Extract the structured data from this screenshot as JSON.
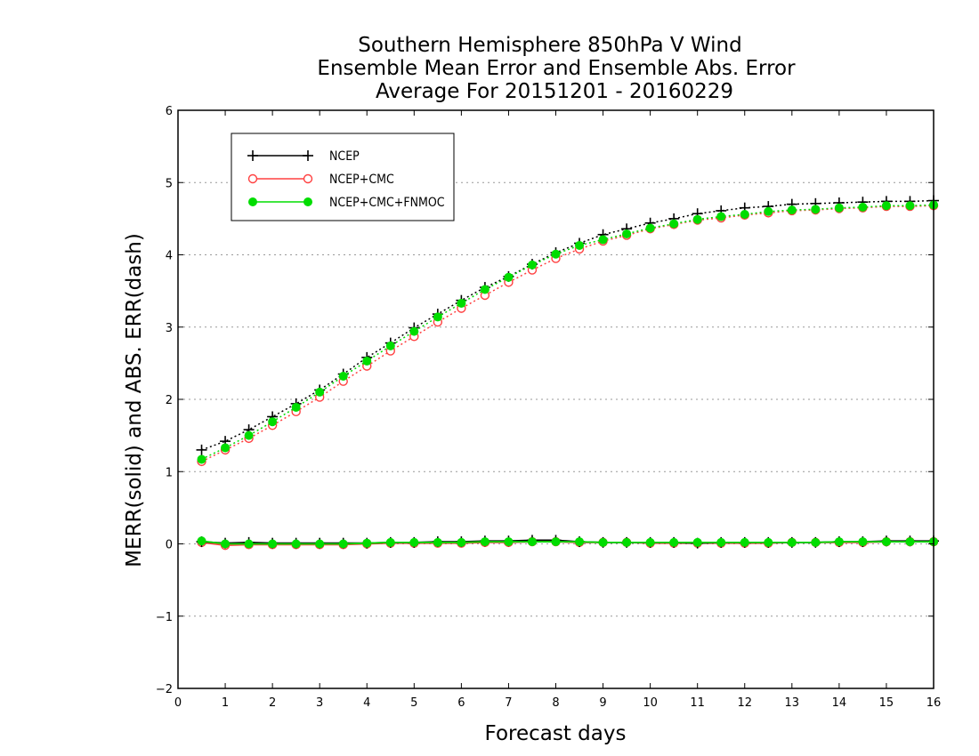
{
  "chart_data": {
    "type": "line",
    "title": [
      "Southern Hemisphere 850hPa V Wind",
      "Ensemble Mean Error and Ensemble Abs. Error",
      "Average For 20151201 - 20160229"
    ],
    "xlabel": "Forecast days",
    "ylabel": "MERR(solid) and ABS. ERR(dash)",
    "xlim": [
      0,
      16
    ],
    "ylim": [
      -2,
      6
    ],
    "xticks": [
      "0",
      "1",
      "2",
      "3",
      "4",
      "5",
      "6",
      "7",
      "8",
      "9",
      "10",
      "11",
      "12",
      "13",
      "14",
      "15",
      "16"
    ],
    "yticks": [
      "−2",
      "−1",
      "0",
      "1",
      "2",
      "3",
      "4",
      "5",
      "6"
    ],
    "grid": "horizontal-dotted",
    "legend_position": "top-left",
    "x": [
      0.5,
      1,
      1.5,
      2,
      2.5,
      3,
      3.5,
      4,
      4.5,
      5,
      5.5,
      6,
      6.5,
      7,
      7.5,
      8,
      8.5,
      9,
      9.5,
      10,
      10.5,
      11,
      11.5,
      12,
      12.5,
      13,
      13.5,
      14,
      14.5,
      15,
      15.5,
      16
    ],
    "series": [
      {
        "name": "NCEP",
        "color": "#000000",
        "marker": "plus",
        "mean_error": [
          0.03,
          0.01,
          0.02,
          0.01,
          0.01,
          0.01,
          0.01,
          0.01,
          0.02,
          0.02,
          0.03,
          0.03,
          0.04,
          0.04,
          0.05,
          0.05,
          0.03,
          0.02,
          0.02,
          0.02,
          0.02,
          0.01,
          0.02,
          0.02,
          0.02,
          0.02,
          0.02,
          0.03,
          0.03,
          0.04,
          0.04,
          0.04
        ],
        "abs_error": [
          1.3,
          1.42,
          1.58,
          1.76,
          1.94,
          2.13,
          2.35,
          2.58,
          2.78,
          2.99,
          3.18,
          3.37,
          3.55,
          3.7,
          3.87,
          4.03,
          4.16,
          4.28,
          4.36,
          4.44,
          4.5,
          4.57,
          4.61,
          4.65,
          4.67,
          4.7,
          4.71,
          4.72,
          4.73,
          4.74,
          4.74,
          4.75
        ]
      },
      {
        "name": "NCEP+CMC",
        "color": "#ff4040",
        "marker": "open-circle",
        "mean_error": [
          0.02,
          -0.02,
          -0.01,
          -0.01,
          -0.01,
          -0.01,
          -0.01,
          0.0,
          0.01,
          0.01,
          0.01,
          0.01,
          0.02,
          0.02,
          0.03,
          0.03,
          0.02,
          0.02,
          0.02,
          0.01,
          0.01,
          0.01,
          0.01,
          0.01,
          0.01,
          0.02,
          0.02,
          0.02,
          0.02,
          0.03,
          0.03,
          0.03
        ],
        "abs_error": [
          1.14,
          1.3,
          1.46,
          1.64,
          1.83,
          2.03,
          2.25,
          2.46,
          2.67,
          2.87,
          3.07,
          3.26,
          3.44,
          3.62,
          3.79,
          3.95,
          4.08,
          4.19,
          4.27,
          4.36,
          4.42,
          4.48,
          4.51,
          4.55,
          4.58,
          4.61,
          4.62,
          4.64,
          4.65,
          4.67,
          4.67,
          4.68
        ]
      },
      {
        "name": "NCEP+CMC+FNMOC",
        "color": "#00dd00",
        "marker": "filled-circle",
        "mean_error": [
          0.04,
          0.0,
          0.0,
          0.0,
          0.0,
          0.0,
          0.0,
          0.01,
          0.02,
          0.02,
          0.02,
          0.02,
          0.03,
          0.03,
          0.03,
          0.03,
          0.03,
          0.02,
          0.02,
          0.02,
          0.02,
          0.02,
          0.02,
          0.02,
          0.02,
          0.02,
          0.02,
          0.03,
          0.03,
          0.03,
          0.03,
          0.03
        ],
        "abs_error": [
          1.17,
          1.33,
          1.5,
          1.69,
          1.89,
          2.1,
          2.32,
          2.53,
          2.74,
          2.94,
          3.14,
          3.33,
          3.52,
          3.69,
          3.86,
          4.01,
          4.13,
          4.21,
          4.29,
          4.37,
          4.43,
          4.49,
          4.53,
          4.56,
          4.6,
          4.62,
          4.63,
          4.65,
          4.66,
          4.68,
          4.68,
          4.69
        ]
      }
    ]
  }
}
